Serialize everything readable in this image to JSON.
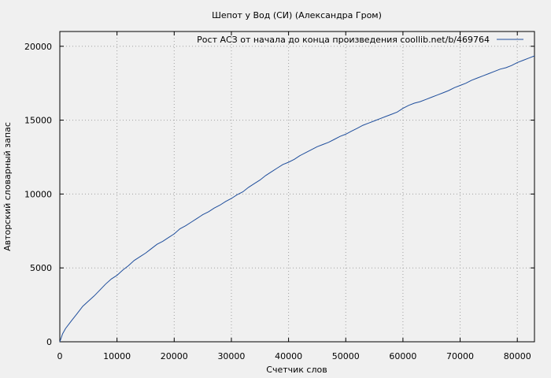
{
  "chart_data": {
    "type": "line",
    "title": "Шепот у Вод (СИ) (Александра Гром)",
    "xlabel": "Счетчик слов",
    "ylabel": "Авторский словарный запас",
    "xlim": [
      0,
      83000
    ],
    "ylim": [
      0,
      21000
    ],
    "xticks": [
      0,
      10000,
      20000,
      30000,
      40000,
      50000,
      60000,
      70000,
      80000
    ],
    "yticks": [
      0,
      5000,
      10000,
      15000,
      20000
    ],
    "grid": true,
    "legend_position": "top-right",
    "series": [
      {
        "name": "Рост АСЗ от начала до конца произведения  coollib.net/b/469764",
        "color": "#1f4e9c",
        "x": [
          0,
          500,
          1000,
          2000,
          3000,
          4000,
          5000,
          6000,
          7000,
          8000,
          9000,
          10000,
          11000,
          12000,
          13000,
          14000,
          15000,
          16000,
          17000,
          18000,
          19000,
          20000,
          21000,
          22000,
          23000,
          24000,
          25000,
          26000,
          27000,
          28000,
          29000,
          30000,
          31000,
          32000,
          33000,
          34000,
          35000,
          36000,
          37000,
          38000,
          39000,
          40000,
          41000,
          42000,
          43000,
          44000,
          45000,
          46000,
          47000,
          48000,
          49000,
          50000,
          51000,
          52000,
          53000,
          54000,
          55000,
          56000,
          57000,
          58000,
          59000,
          60000,
          61000,
          62000,
          63000,
          64000,
          65000,
          66000,
          67000,
          68000,
          69000,
          70000,
          71000,
          72000,
          73000,
          74000,
          75000,
          76000,
          77000,
          78000,
          79000,
          80000,
          81000,
          82000,
          83000
        ],
        "y": [
          0,
          550,
          900,
          1400,
          1900,
          2400,
          2750,
          3100,
          3500,
          3900,
          4250,
          4500,
          4850,
          5150,
          5500,
          5750,
          6000,
          6300,
          6600,
          6800,
          7050,
          7300,
          7650,
          7850,
          8100,
          8350,
          8600,
          8800,
          9050,
          9250,
          9500,
          9700,
          9950,
          10150,
          10450,
          10700,
          10950,
          11250,
          11500,
          11750,
          12000,
          12150,
          12350,
          12600,
          12800,
          13000,
          13200,
          13350,
          13500,
          13700,
          13900,
          14050,
          14250,
          14450,
          14650,
          14800,
          14950,
          15100,
          15250,
          15400,
          15550,
          15800,
          16000,
          16150,
          16250,
          16400,
          16550,
          16700,
          16850,
          17000,
          17200,
          17350,
          17500,
          17700,
          17850,
          18000,
          18150,
          18300,
          18450,
          18550,
          18700,
          18900,
          19050,
          19200,
          19350
        ]
      }
    ]
  }
}
